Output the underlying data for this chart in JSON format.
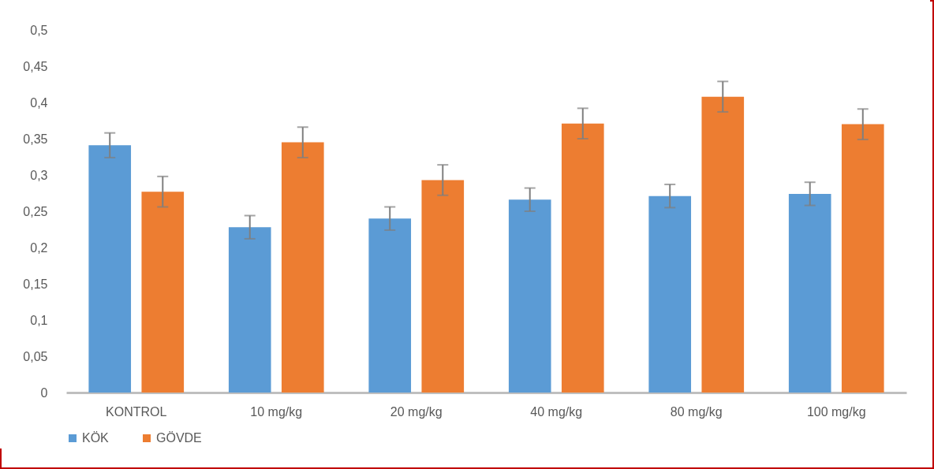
{
  "chart_data": {
    "type": "bar",
    "categories": [
      "KONTROL",
      "10 mg/kg",
      "20 mg/kg",
      "40 mg/kg",
      "80 mg/kg",
      "100 mg/kg"
    ],
    "series": [
      {
        "name": "KÖK",
        "color": "#5b9bd5",
        "values": [
          0.341,
          0.228,
          0.24,
          0.266,
          0.271,
          0.274
        ],
        "errors": [
          0.017,
          0.016,
          0.016,
          0.016,
          0.016,
          0.016
        ]
      },
      {
        "name": "GÖVDE",
        "color": "#ed7d31",
        "values": [
          0.277,
          0.345,
          0.293,
          0.371,
          0.408,
          0.37
        ],
        "errors": [
          0.021,
          0.021,
          0.021,
          0.021,
          0.021,
          0.021
        ]
      }
    ],
    "ylim": [
      0,
      0.5
    ],
    "yticks": [
      {
        "value": 0,
        "label": "0"
      },
      {
        "value": 0.05,
        "label": "0,05"
      },
      {
        "value": 0.1,
        "label": "0,1"
      },
      {
        "value": 0.15,
        "label": "0,15"
      },
      {
        "value": 0.2,
        "label": "0,2"
      },
      {
        "value": 0.25,
        "label": "0,25"
      },
      {
        "value": 0.3,
        "label": "0,3"
      },
      {
        "value": 0.35,
        "label": "0,35"
      },
      {
        "value": 0.4,
        "label": "0,4"
      },
      {
        "value": 0.45,
        "label": "0,45"
      },
      {
        "value": 0.5,
        "label": "0,5"
      }
    ],
    "grid": false,
    "legend": "bottom"
  }
}
